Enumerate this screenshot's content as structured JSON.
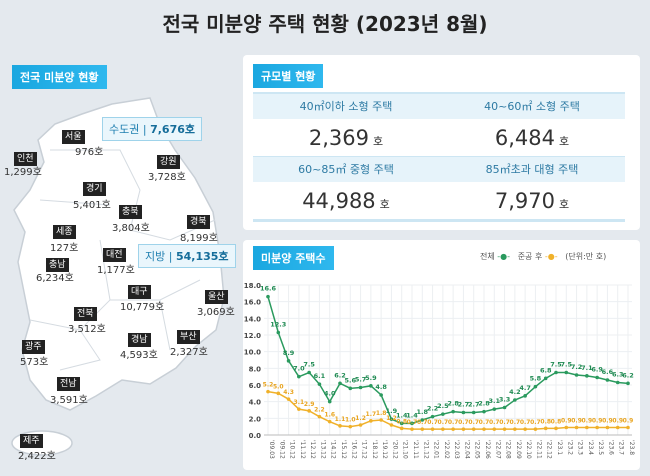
{
  "title": "전국 미분양 주택 현황  (2023년 8월)",
  "map_panel": {
    "heading": "전국 미분양 현황",
    "capital_area": {
      "label": "수도권",
      "value": "7,676호"
    },
    "provinces_total": {
      "label": "지방",
      "value": "54,135호"
    },
    "regions": [
      {
        "name": "서울",
        "value": "976호"
      },
      {
        "name": "인천",
        "value": "1,299호"
      },
      {
        "name": "강원",
        "value": "3,728호"
      },
      {
        "name": "경기",
        "value": "5,401호"
      },
      {
        "name": "충북",
        "value": "3,804호"
      },
      {
        "name": "경북",
        "value": "8,199호"
      },
      {
        "name": "세종",
        "value": "127호"
      },
      {
        "name": "충남",
        "value": "6,234호"
      },
      {
        "name": "대전",
        "value": "1,177호"
      },
      {
        "name": "대구",
        "value": "10,779호"
      },
      {
        "name": "울산",
        "value": "3,069호"
      },
      {
        "name": "전북",
        "value": "3,512호"
      },
      {
        "name": "광주",
        "value": "573호"
      },
      {
        "name": "경남",
        "value": "4,593호"
      },
      {
        "name": "부산",
        "value": "2,327호"
      },
      {
        "name": "전남",
        "value": "3,591호"
      },
      {
        "name": "제주",
        "value": "2,422호"
      }
    ]
  },
  "size_panel": {
    "heading": "규모별 현황",
    "unit": "호",
    "items": [
      {
        "label": "40㎡이하 소형 주택",
        "value": "2,369"
      },
      {
        "label": "40~60㎡ 소형 주택",
        "value": "6,484"
      },
      {
        "label": "60~85㎡ 중형 주택",
        "value": "44,988"
      },
      {
        "label": "85㎡초과 대형 주택",
        "value": "7,970"
      }
    ]
  },
  "chart_panel": {
    "heading": "미분양 주택수"
  },
  "chart_data": {
    "type": "line",
    "unit_note": "(단위:만 호)",
    "categories": [
      "'09.03",
      "'09.12",
      "'10.12",
      "'11.12",
      "'12.12",
      "'13.12",
      "'14.12",
      "'15.12",
      "'16.12",
      "'17.12",
      "'18.12",
      "'19.12",
      "'20.12",
      "'21.10",
      "'21.11",
      "'21.12",
      "'22.01",
      "'22.02",
      "'22.03",
      "'22.04",
      "'22.05",
      "'22.06",
      "'22.07",
      "'22.08",
      "'22.09",
      "'22.10",
      "'22.11",
      "'22.12",
      "'23.1",
      "'23.2",
      "'23.3",
      "'23.4",
      "'23.5",
      "'23.6",
      "'23.7",
      "'23.8"
    ],
    "series": [
      {
        "name": "전체",
        "color": "#2a9a5e",
        "values": [
          16.6,
          12.3,
          8.9,
          7.0,
          7.5,
          6.1,
          4.0,
          6.2,
          5.6,
          5.7,
          5.9,
          4.8,
          1.9,
          1.4,
          1.4,
          1.8,
          2.2,
          2.5,
          2.8,
          2.7,
          2.7,
          2.8,
          3.1,
          3.3,
          4.2,
          4.7,
          5.8,
          6.8,
          7.5,
          7.5,
          7.2,
          7.1,
          6.9,
          6.6,
          6.3,
          6.2
        ]
      },
      {
        "name": "준공 후",
        "color": "#f0b12a",
        "values": [
          5.2,
          5.0,
          4.3,
          3.1,
          2.9,
          2.2,
          1.6,
          1.1,
          1.0,
          1.2,
          1.7,
          1.8,
          1.2,
          0.8,
          0.7,
          0.7,
          0.7,
          0.7,
          0.7,
          0.7,
          0.7,
          0.7,
          0.7,
          0.7,
          0.7,
          0.7,
          0.7,
          0.8,
          0.8,
          0.9,
          0.9,
          0.9,
          0.9,
          0.9,
          0.9,
          0.9
        ]
      }
    ],
    "yticks": [
      "0.0",
      "2.0",
      "4.0",
      "6.0",
      "8.0",
      "10.0",
      "12.0",
      "14.0",
      "16.0",
      "18.0"
    ],
    "ylim": [
      0,
      18
    ],
    "grid": true,
    "legend": "top-right"
  }
}
